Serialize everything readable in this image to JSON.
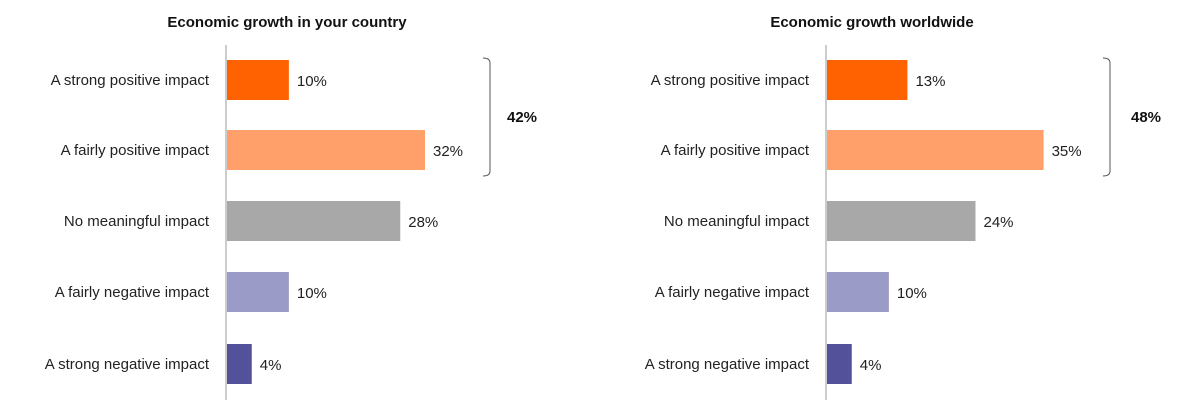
{
  "chart_data": [
    {
      "type": "bar",
      "orientation": "horizontal",
      "title": "Economic growth in your country",
      "categories": [
        "A strong positive impact",
        "A fairly positive impact",
        "No meaningful impact",
        "A fairly negative impact",
        "A strong negative impact"
      ],
      "values": [
        10,
        32,
        28,
        10,
        4
      ],
      "value_labels": [
        "10%",
        "32%",
        "28%",
        "10%",
        "4%"
      ],
      "colors": [
        "#FF6200",
        "#FFA06A",
        "#A8A8A8",
        "#9B9BC8",
        "#525199"
      ],
      "bracket": {
        "label": "42%",
        "from": 0,
        "to": 1
      },
      "xlim": [
        0,
        35
      ]
    },
    {
      "type": "bar",
      "orientation": "horizontal",
      "title": "Economic growth worldwide",
      "categories": [
        "A strong positive impact",
        "A fairly positive impact",
        "No meaningful impact",
        "A fairly negative impact",
        "A strong negative impact"
      ],
      "values": [
        13,
        35,
        24,
        10,
        4
      ],
      "value_labels": [
        "13%",
        "35%",
        "24%",
        "10%",
        "4%"
      ],
      "colors": [
        "#FF6200",
        "#FFA06A",
        "#A8A8A8",
        "#9B9BC8",
        "#525199"
      ],
      "bracket": {
        "label": "48%",
        "from": 0,
        "to": 1
      },
      "xlim": [
        0,
        35
      ]
    }
  ]
}
